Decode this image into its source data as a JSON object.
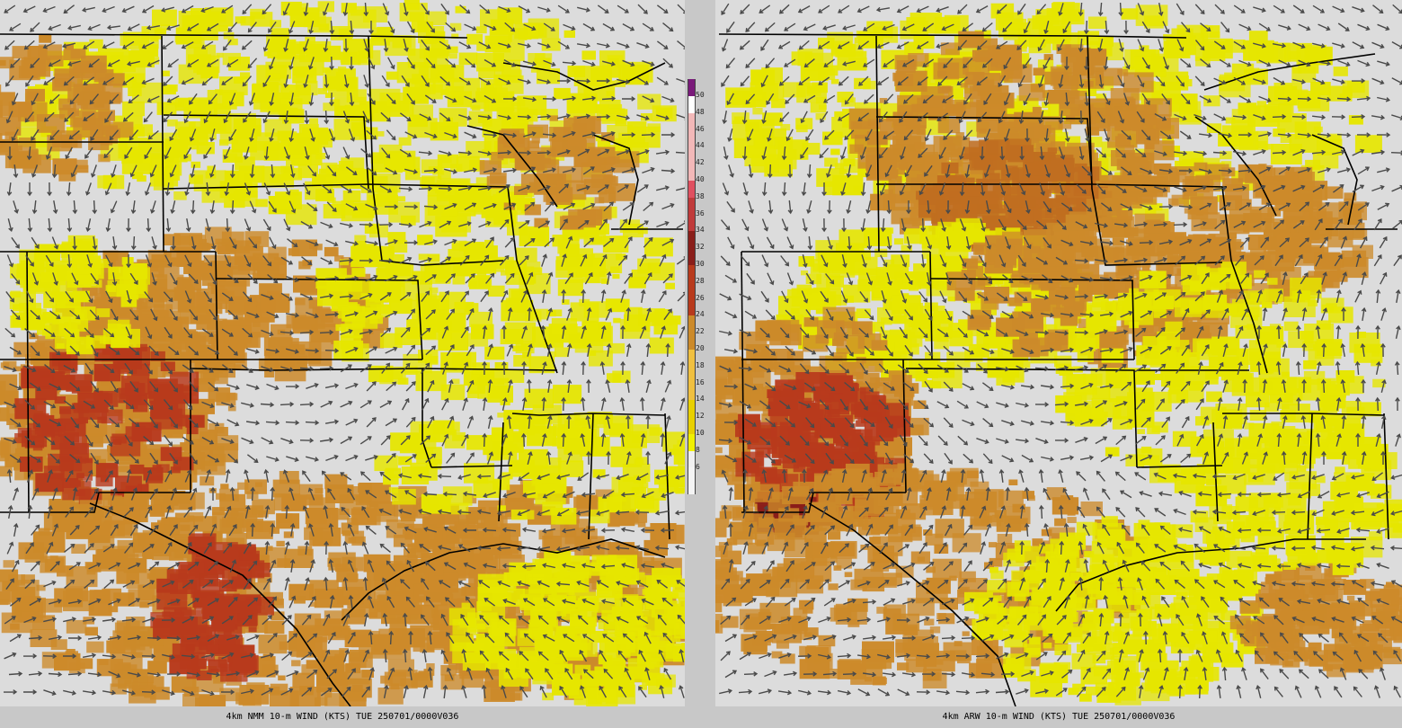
{
  "panels": [
    {
      "id": "left",
      "caption": "4km NMM 10-m WIND (KTS) TUE 250701/0000V036"
    },
    {
      "id": "right",
      "caption": "4km ARW 10-m WIND (KTS) TUE 250701/0000V036"
    }
  ],
  "colorbar": {
    "labels": [
      "50",
      "48",
      "46",
      "44",
      "42",
      "40",
      "38",
      "36",
      "34",
      "32",
      "30",
      "28",
      "26",
      "24",
      "22",
      "20",
      "18",
      "16",
      "14",
      "12",
      "10",
      "8",
      "6"
    ],
    "colors": {
      "calm": "#dcdcdc",
      "light": "#e6e600",
      "light2": "#c8cc10",
      "moderate": "#cc8a2a",
      "moderate2": "#c06e20",
      "strong": "#b83a1c",
      "strong2": "#8a1e1a",
      "vstrong": "#e05060",
      "extreme": "#7a1a7a"
    }
  },
  "colors": {
    "arrow": "#4a4a4a",
    "border": "#000000",
    "background": "#c8c8c8"
  }
}
